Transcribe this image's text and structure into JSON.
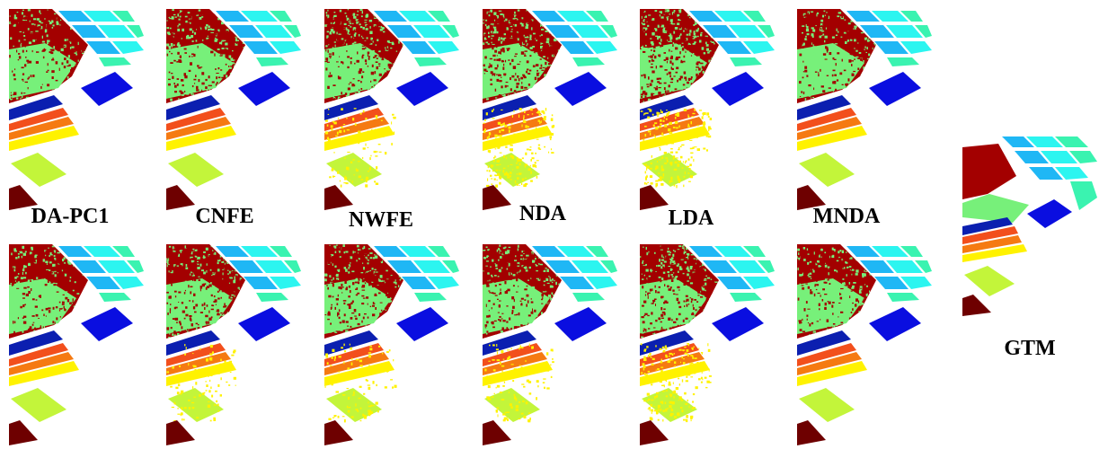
{
  "labels": {
    "da_pc1": "DA-PC1",
    "cnfe": "CNFE",
    "nwfe": "NWFE",
    "nda": "NDA",
    "lda": "LDA",
    "mnda": "MNDA",
    "gtm": "GTM"
  },
  "colors": {
    "brown_red": "#a30000",
    "light_green": "#77f07a",
    "cyan": "#2cf5f0",
    "sky_blue": "#1fb7f5",
    "teal_green": "#3af3b0",
    "blue": "#0a0ee0",
    "navy": "#0b1fb0",
    "orange": "#f57a12",
    "orange_red": "#f24f1c",
    "yellow": "#fff200",
    "yellow_green": "#c3f53a",
    "dark_maroon": "#6e0000"
  }
}
